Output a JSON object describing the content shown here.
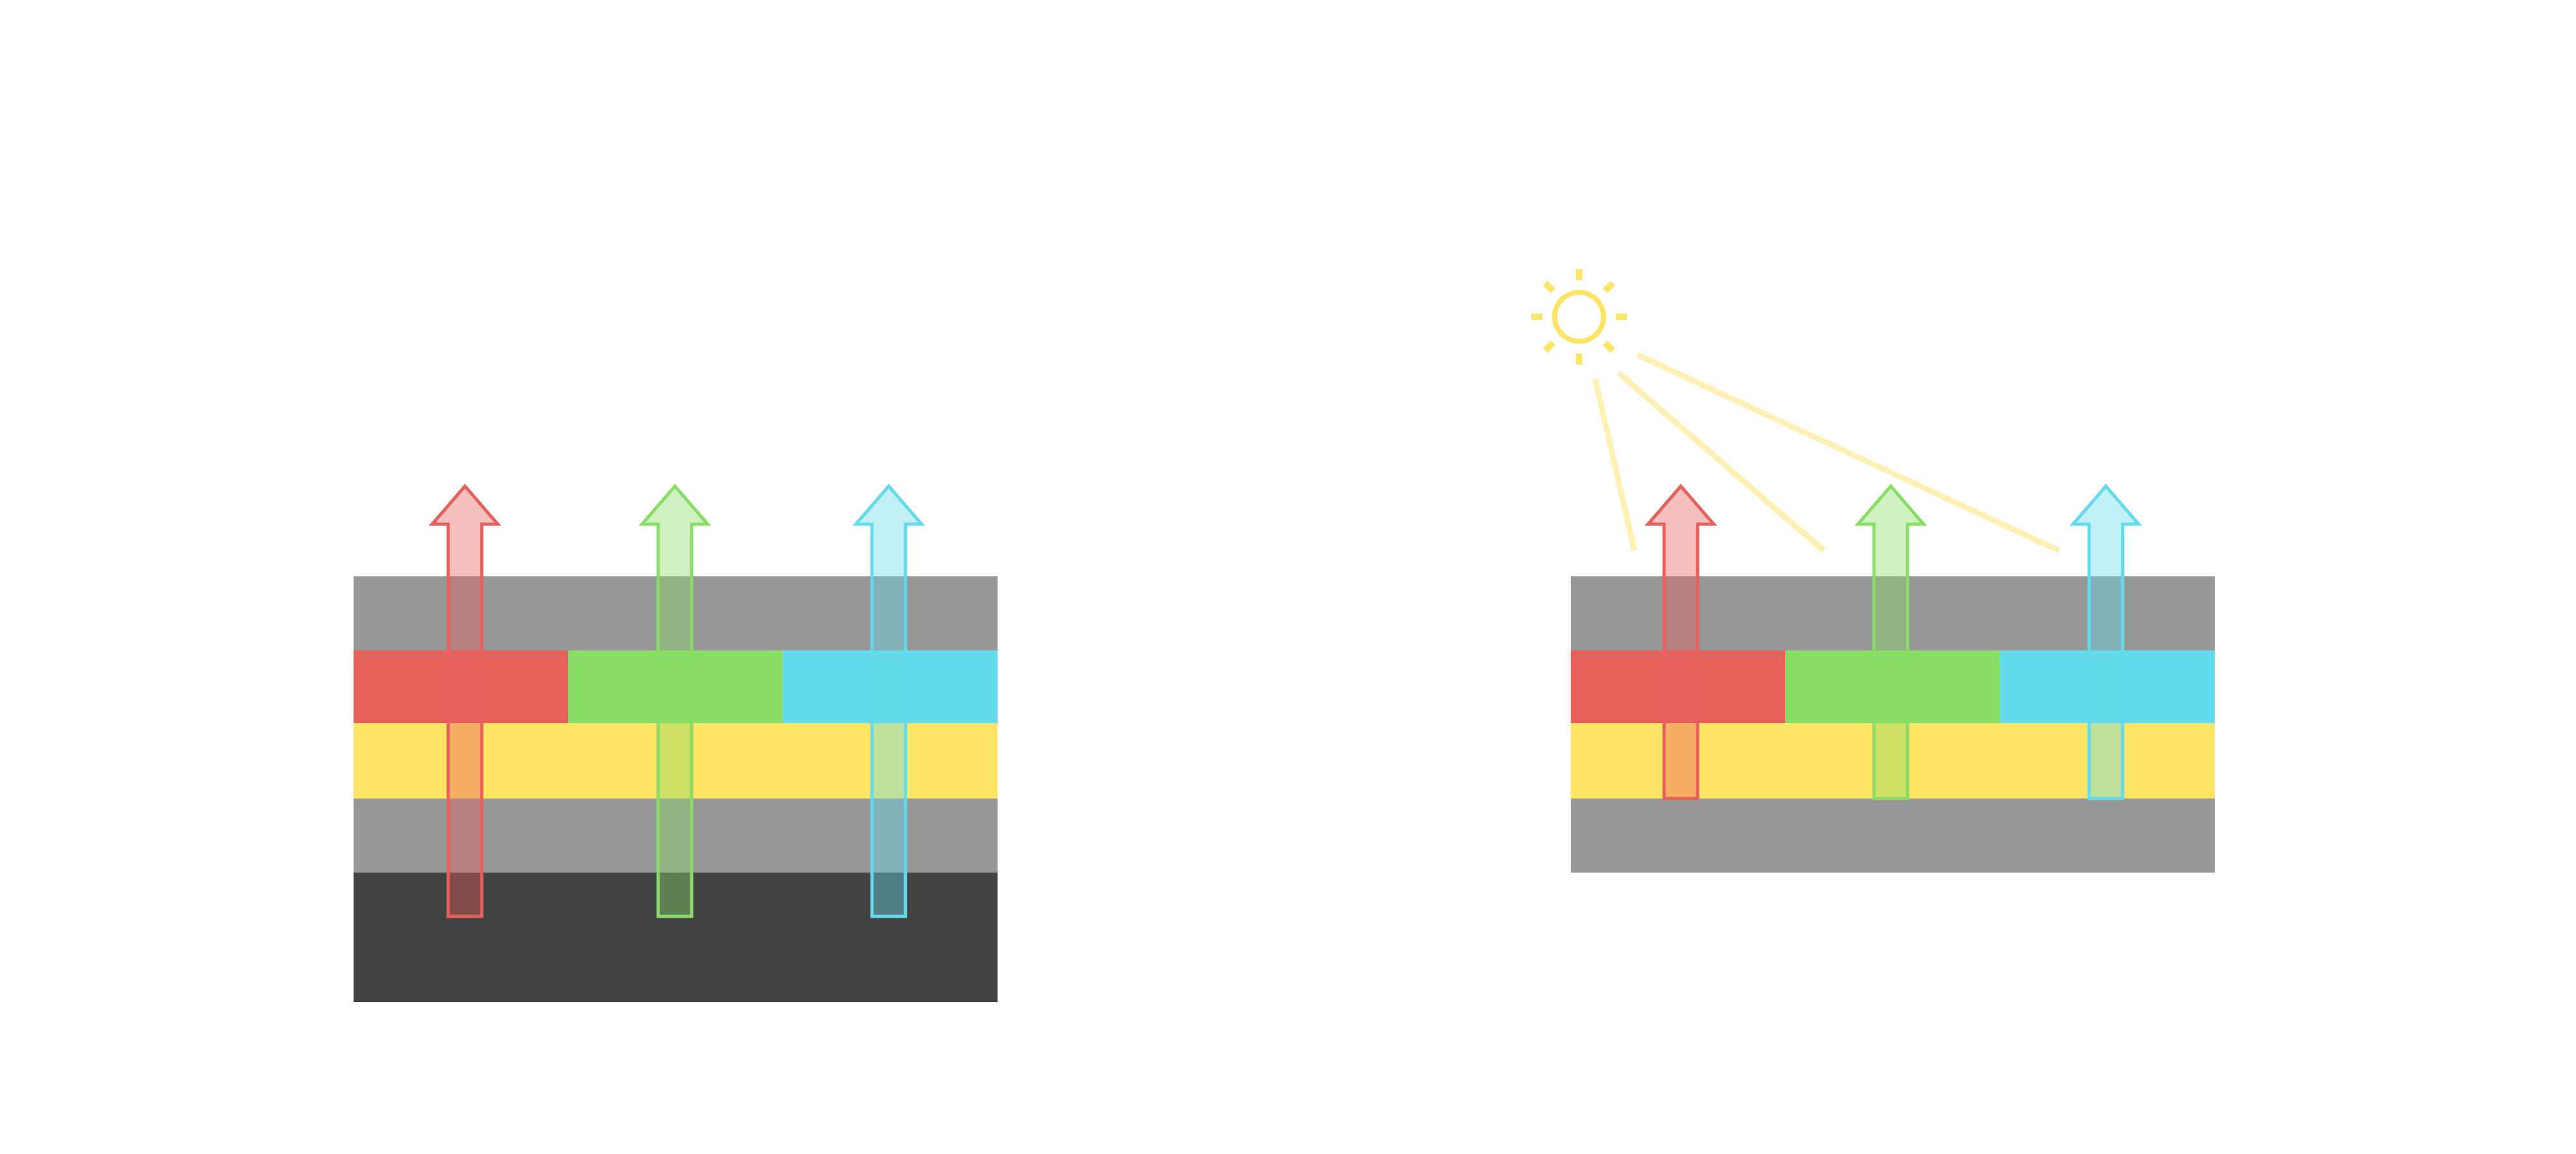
{
  "colors": {
    "background": "#ffffff",
    "gray_layer": "#979797",
    "dark_layer": "#424242",
    "red": "#e6605c",
    "green": "#89dd64",
    "cyan": "#63dbec",
    "yellow": "#fee566",
    "sun": "#fee566",
    "light_beam": "#fff0b3"
  },
  "left_stack": {
    "layers": [
      "gray",
      "color-filter",
      "yellow",
      "gray",
      "dark"
    ],
    "arrows": [
      "red",
      "green",
      "cyan"
    ]
  },
  "right_stack": {
    "layers": [
      "gray",
      "color-filter",
      "yellow",
      "gray"
    ],
    "arrows": [
      "red",
      "green",
      "cyan"
    ],
    "icons": [
      "sun-icon"
    ],
    "light_beams": 3
  }
}
